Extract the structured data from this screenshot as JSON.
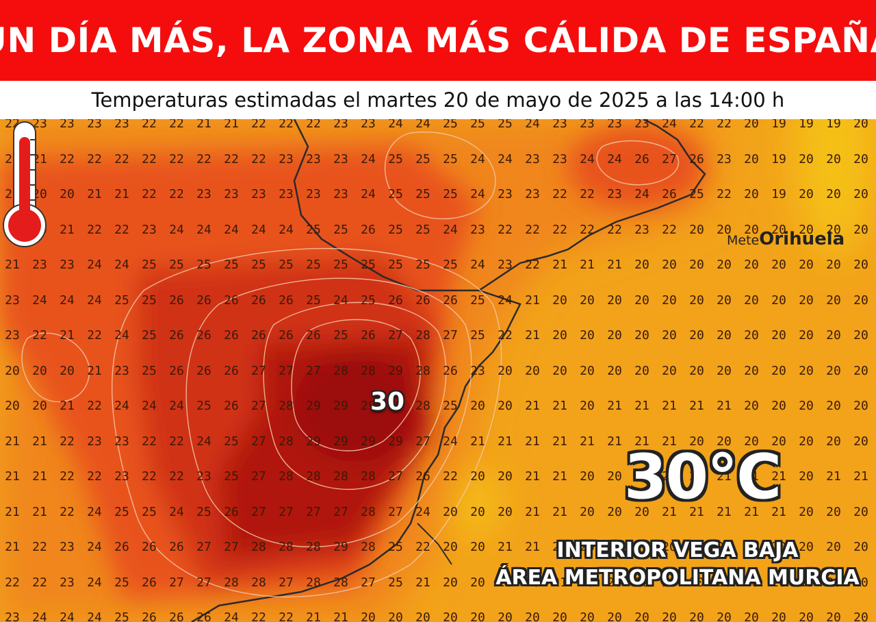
{
  "header": {
    "title": "UN DÍA MÁS, LA ZONA MÁS CÁLIDA DE ESPAÑA",
    "subtitle": "Temperaturas estimadas el martes 20 de mayo de 2025 a las 14:00 h",
    "banner_color": "#f50d0d"
  },
  "map": {
    "grid_values": [
      [
        "22",
        "23",
        "23",
        "23",
        "23",
        "22",
        "22",
        "21",
        "21",
        "22",
        "22",
        "22",
        "23",
        "23",
        "24",
        "24",
        "25",
        "25",
        "25",
        "24",
        "23",
        "23",
        "23",
        "23",
        "24",
        "22",
        "22",
        "20",
        "19",
        "19",
        "19",
        "20",
        "19"
      ],
      [
        "21",
        "21",
        "22",
        "22",
        "22",
        "22",
        "22",
        "22",
        "22",
        "22",
        "23",
        "23",
        "23",
        "24",
        "25",
        "25",
        "25",
        "24",
        "24",
        "23",
        "23",
        "24",
        "24",
        "26",
        "27",
        "26",
        "23",
        "20",
        "19",
        "20",
        "20",
        "20",
        "19"
      ],
      [
        "20",
        "20",
        "20",
        "21",
        "21",
        "22",
        "22",
        "23",
        "23",
        "23",
        "23",
        "23",
        "23",
        "24",
        "25",
        "25",
        "25",
        "24",
        "23",
        "23",
        "22",
        "22",
        "23",
        "24",
        "26",
        "25",
        "22",
        "20",
        "19",
        "20",
        "20",
        "20",
        "20"
      ],
      [
        "19",
        "20",
        "21",
        "22",
        "22",
        "23",
        "24",
        "24",
        "24",
        "24",
        "24",
        "25",
        "25",
        "26",
        "25",
        "25",
        "24",
        "23",
        "22",
        "22",
        "22",
        "22",
        "22",
        "23",
        "22",
        "20",
        "20",
        "20",
        "20",
        "20",
        "20",
        "20",
        "20"
      ],
      [
        "21",
        "23",
        "23",
        "24",
        "24",
        "25",
        "25",
        "25",
        "25",
        "25",
        "25",
        "25",
        "25",
        "25",
        "25",
        "25",
        "25",
        "24",
        "23",
        "22",
        "21",
        "21",
        "21",
        "20",
        "20",
        "20",
        "20",
        "20",
        "20",
        "20",
        "20",
        "20",
        "20"
      ],
      [
        "23",
        "24",
        "24",
        "24",
        "25",
        "25",
        "26",
        "26",
        "26",
        "26",
        "26",
        "25",
        "24",
        "25",
        "26",
        "26",
        "26",
        "25",
        "24",
        "21",
        "20",
        "20",
        "20",
        "20",
        "20",
        "20",
        "20",
        "20",
        "20",
        "20",
        "20",
        "20",
        "20"
      ],
      [
        "23",
        "22",
        "21",
        "22",
        "24",
        "25",
        "26",
        "26",
        "26",
        "26",
        "26",
        "26",
        "25",
        "26",
        "27",
        "28",
        "27",
        "25",
        "22",
        "21",
        "20",
        "20",
        "20",
        "20",
        "20",
        "20",
        "20",
        "20",
        "20",
        "20",
        "20",
        "20",
        "20"
      ],
      [
        "20",
        "20",
        "20",
        "21",
        "23",
        "25",
        "26",
        "26",
        "26",
        "27",
        "27",
        "27",
        "28",
        "28",
        "29",
        "28",
        "26",
        "23",
        "20",
        "20",
        "20",
        "20",
        "20",
        "20",
        "20",
        "20",
        "20",
        "20",
        "20",
        "20",
        "20",
        "20",
        "20"
      ],
      [
        "20",
        "20",
        "21",
        "22",
        "24",
        "24",
        "24",
        "25",
        "26",
        "27",
        "28",
        "29",
        "29",
        "29",
        "29",
        "28",
        "25",
        "20",
        "20",
        "21",
        "21",
        "20",
        "21",
        "21",
        "21",
        "21",
        "21",
        "20",
        "20",
        "20",
        "20",
        "20",
        "20"
      ],
      [
        "21",
        "21",
        "22",
        "23",
        "23",
        "22",
        "22",
        "24",
        "25",
        "27",
        "28",
        "29",
        "29",
        "29",
        "29",
        "27",
        "24",
        "21",
        "21",
        "21",
        "21",
        "21",
        "21",
        "21",
        "21",
        "20",
        "20",
        "20",
        "20",
        "20",
        "20",
        "20",
        "20"
      ],
      [
        "21",
        "21",
        "22",
        "22",
        "23",
        "22",
        "22",
        "23",
        "25",
        "27",
        "28",
        "28",
        "28",
        "28",
        "27",
        "26",
        "22",
        "20",
        "20",
        "21",
        "21",
        "20",
        "20",
        "21",
        "21",
        "21",
        "21",
        "21",
        "21",
        "20",
        "21",
        "21",
        "21"
      ],
      [
        "21",
        "21",
        "22",
        "24",
        "25",
        "25",
        "24",
        "25",
        "26",
        "27",
        "27",
        "27",
        "27",
        "28",
        "27",
        "24",
        "20",
        "20",
        "20",
        "21",
        "21",
        "20",
        "20",
        "20",
        "21",
        "21",
        "21",
        "21",
        "21",
        "20",
        "20",
        "20",
        "20"
      ],
      [
        "21",
        "22",
        "23",
        "24",
        "26",
        "26",
        "26",
        "27",
        "27",
        "28",
        "28",
        "28",
        "29",
        "28",
        "25",
        "22",
        "20",
        "20",
        "21",
        "21",
        "21",
        "20",
        "20",
        "20",
        "20",
        "20",
        "20",
        "20",
        "20",
        "20",
        "20",
        "20",
        "20"
      ],
      [
        "22",
        "22",
        "23",
        "24",
        "25",
        "26",
        "27",
        "27",
        "28",
        "28",
        "27",
        "28",
        "28",
        "27",
        "25",
        "21",
        "20",
        "20",
        "20",
        "20",
        "21",
        "20",
        "20",
        "20",
        "20",
        "20",
        "20",
        "20",
        "20",
        "20",
        "20",
        "20",
        "20"
      ],
      [
        "23",
        "24",
        "24",
        "24",
        "25",
        "26",
        "26",
        "26",
        "24",
        "22",
        "22",
        "21",
        "21",
        "20",
        "20",
        "20",
        "20",
        "20",
        "20",
        "20",
        "20",
        "20",
        "20",
        "20",
        "20",
        "20",
        "20",
        "20",
        "20",
        "20",
        "20",
        "20",
        "20"
      ]
    ],
    "peak_label": "30",
    "logo_prefix": "Mete",
    "logo_name": "Orihuela",
    "colors": {
      "hot": "#b0120f",
      "warm": "#e8521c",
      "mild": "#f0861f",
      "cool": "#f2a31a",
      "coolest": "#f5c016"
    }
  },
  "highlight": {
    "temperature": "30°C",
    "area_line1": "INTERIOR VEGA BAJA",
    "area_line2": "ÁREA METROPOLITANA MURCIA",
    "icon": "thermometer-icon"
  }
}
